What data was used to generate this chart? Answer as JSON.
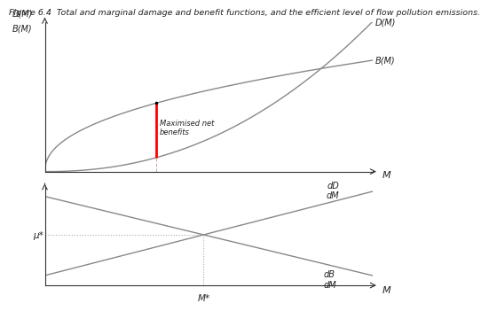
{
  "title": "Figure 6.4  Total and marginal damage and benefit functions, and the efficient level of flow pollution emissions.",
  "title_fontsize": 6.8,
  "bg_color": "#ffffff",
  "line_color": "#888888",
  "top_panel": {
    "ylabel_line1": "D(M)",
    "ylabel_line2": "B(M)",
    "xlabel": "M",
    "dm_label": "D(M)",
    "bm_label": "B(M)",
    "maximised_label": "Maximised net\nbenefits"
  },
  "bottom_panel": {
    "ylabel": "μ*",
    "xlabel": "M",
    "xstar_label": "M*",
    "dd_label": "dD\ndM",
    "db_label": "dB\ndM"
  }
}
